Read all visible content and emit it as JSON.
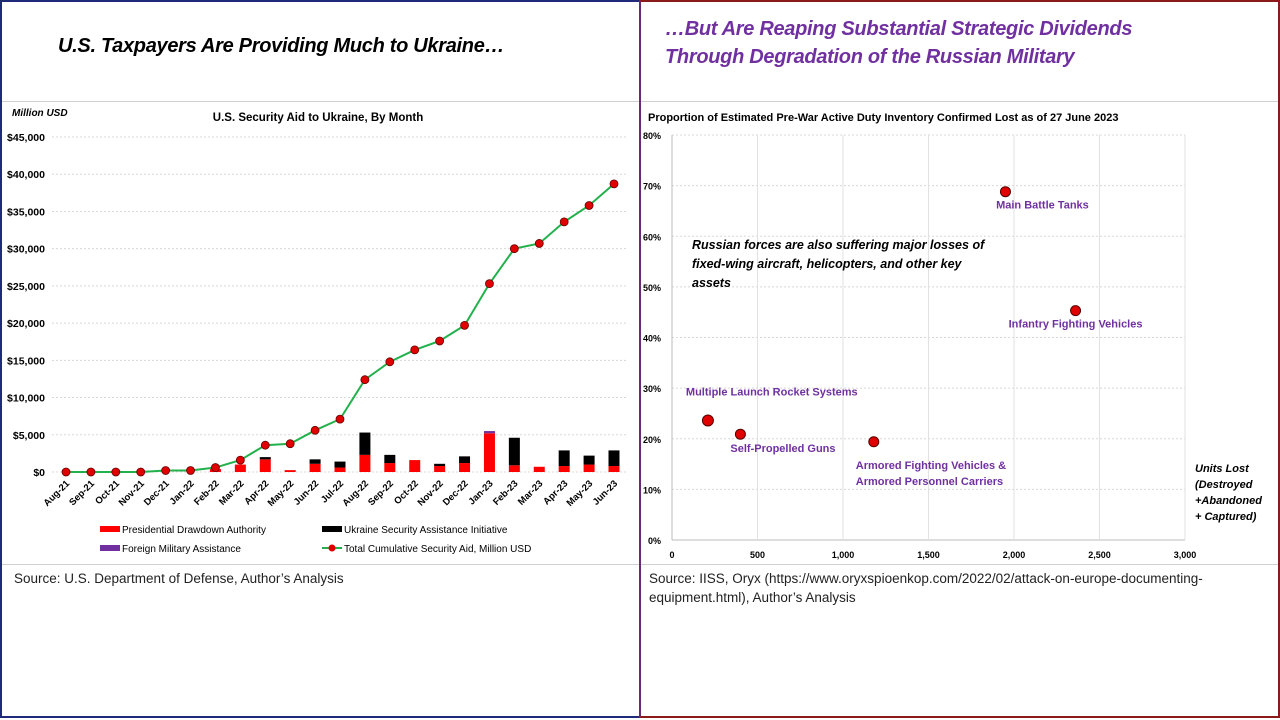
{
  "left": {
    "header_title": "U.S. Taxpayers Are Providing Much to Ukraine…",
    "source": "Source: U.S. Department of Defense, Author’s Analysis"
  },
  "right": {
    "header_title_line1": "…But Are Reaping Substantial Strategic Dividends",
    "header_title_line2": "Through Degradation of the Russian Military",
    "source": "Source: IISS, Oryx (https://www.oryxspioenkop.com/2022/02/attack-on-europe-documenting-equipment.html),  Author’s Analysis"
  },
  "colors": {
    "pda": "#ff0000",
    "usai": "#000000",
    "fma": "#7030a0",
    "line": "#22b14c",
    "marker": "#e00000",
    "label": "#7030a0"
  },
  "chart_data": [
    {
      "type": "bar+line",
      "title": "U.S. Security Aid to Ukraine, By Month",
      "ylabel": "Million USD",
      "ylim": [
        0,
        45000
      ],
      "yticks": [
        "$0",
        "$5,000",
        "$10,000",
        "$15,000",
        "$20,000",
        "$25,000",
        "$30,000",
        "$35,000",
        "$40,000",
        "$45,000"
      ],
      "grid": true,
      "legend": "bottom",
      "categories": [
        "Aug-21",
        "Sep-21",
        "Oct-21",
        "Nov-21",
        "Dec-21",
        "Jan-22",
        "Feb-22",
        "Mar-22",
        "Apr-22",
        "May-22",
        "Jun-22",
        "Jul-22",
        "Aug-22",
        "Sep-22",
        "Oct-22",
        "Nov-22",
        "Dec-22",
        "Jan-23",
        "Feb-23",
        "Mar-23",
        "Apr-23",
        "May-23",
        "Jun-23"
      ],
      "series": [
        {
          "name": "Presidential Drawdown Authority",
          "kind": "stacked-bar",
          "values": [
            0,
            0,
            0,
            0,
            0,
            0,
            400,
            1000,
            1700,
            250,
            1100,
            600,
            2300,
            1200,
            1600,
            800,
            1200,
            5200,
            900,
            700,
            800,
            1000,
            800
          ]
        },
        {
          "name": "Ukraine Security Assistance Initiative",
          "kind": "stacked-bar",
          "values": [
            0,
            0,
            0,
            0,
            0,
            0,
            0,
            0,
            300,
            0,
            600,
            800,
            3000,
            1100,
            0,
            300,
            900,
            0,
            3700,
            0,
            2100,
            1200,
            2100
          ]
        },
        {
          "name": "Foreign Military Assistance",
          "kind": "stacked-bar",
          "values": [
            0,
            0,
            0,
            0,
            0,
            0,
            0,
            0,
            0,
            0,
            0,
            0,
            0,
            0,
            0,
            0,
            0,
            300,
            0,
            0,
            0,
            0,
            0
          ]
        },
        {
          "name": "Total Cumulative Security Aid, Million USD",
          "kind": "line",
          "values": [
            0,
            0,
            0,
            0,
            200,
            200,
            600,
            1600,
            3600,
            3800,
            5600,
            7100,
            12400,
            14800,
            16400,
            17600,
            19700,
            25300,
            30000,
            30700,
            33600,
            35800,
            38700
          ]
        }
      ]
    },
    {
      "type": "scatter",
      "title": "Proportion of Estimated Pre-War Active Duty Inventory Confirmed Lost as of 27 June 2023",
      "xlabel": [
        "Units Lost",
        "(Destroyed",
        "+Abandoned",
        "+ Captured)"
      ],
      "xlim": [
        0,
        3000
      ],
      "ylim": [
        0,
        80
      ],
      "xticks": [
        "0",
        "500",
        "1,000",
        "1,500",
        "2,000",
        "2,500",
        "3,000"
      ],
      "yticks": [
        "0%",
        "10%",
        "20%",
        "30%",
        "40%",
        "50%",
        "60%",
        "70%",
        "80%"
      ],
      "grid": true,
      "annotation": [
        "Russian forces are also suffering major losses of",
        "fixed-wing aircraft, helicopters, and other key",
        "assets"
      ],
      "points": [
        {
          "label": [
            "Main Battle Tanks"
          ],
          "x": 1950,
          "y": 68.8
        },
        {
          "label": [
            "Infantry Fighting Vehicles"
          ],
          "x": 2360,
          "y": 45.3
        },
        {
          "label": [
            "Multiple Launch Rocket Systems"
          ],
          "x": 210,
          "y": 23.6
        },
        {
          "label": [
            "Self-Propelled Guns"
          ],
          "x": 400,
          "y": 20.9
        },
        {
          "label": [
            "Armored Fighting Vehicles &",
            "Armored Personnel Carriers"
          ],
          "x": 1180,
          "y": 19.4
        }
      ]
    }
  ]
}
